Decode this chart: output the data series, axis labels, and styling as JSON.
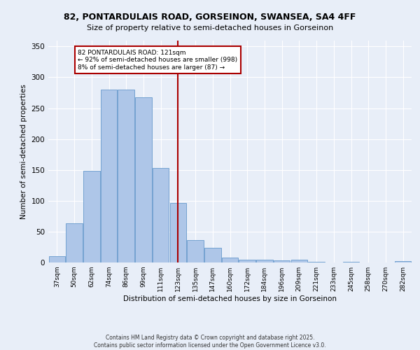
{
  "title_line1": "82, PONTARDULAIS ROAD, GORSEINON, SWANSEA, SA4 4FF",
  "title_line2": "Size of property relative to semi-detached houses in Gorseinon",
  "xlabel": "Distribution of semi-detached houses by size in Gorseinon",
  "ylabel": "Number of semi-detached properties",
  "categories": [
    "37sqm",
    "50sqm",
    "62sqm",
    "74sqm",
    "86sqm",
    "99sqm",
    "111sqm",
    "123sqm",
    "135sqm",
    "147sqm",
    "160sqm",
    "172sqm",
    "184sqm",
    "196sqm",
    "209sqm",
    "221sqm",
    "233sqm",
    "245sqm",
    "258sqm",
    "270sqm",
    "282sqm"
  ],
  "values": [
    10,
    63,
    148,
    280,
    280,
    268,
    153,
    96,
    36,
    24,
    8,
    5,
    4,
    3,
    4,
    1,
    0,
    1,
    0,
    0,
    2
  ],
  "bar_color": "#aec6e8",
  "bar_edge_color": "#6699cc",
  "vline_color": "#aa0000",
  "annotation_text": "82 PONTARDULAIS ROAD: 121sqm\n← 92% of semi-detached houses are smaller (998)\n8% of semi-detached houses are larger (87) →",
  "annotation_box_color": "#ffffff",
  "annotation_box_edge": "#aa0000",
  "bg_color": "#e8eef8",
  "plot_bg_color": "#e8eef8",
  "footer_text": "Contains HM Land Registry data © Crown copyright and database right 2025.\nContains public sector information licensed under the Open Government Licence v3.0.",
  "ylim": [
    0,
    360
  ],
  "yticks": [
    0,
    50,
    100,
    150,
    200,
    250,
    300,
    350
  ]
}
